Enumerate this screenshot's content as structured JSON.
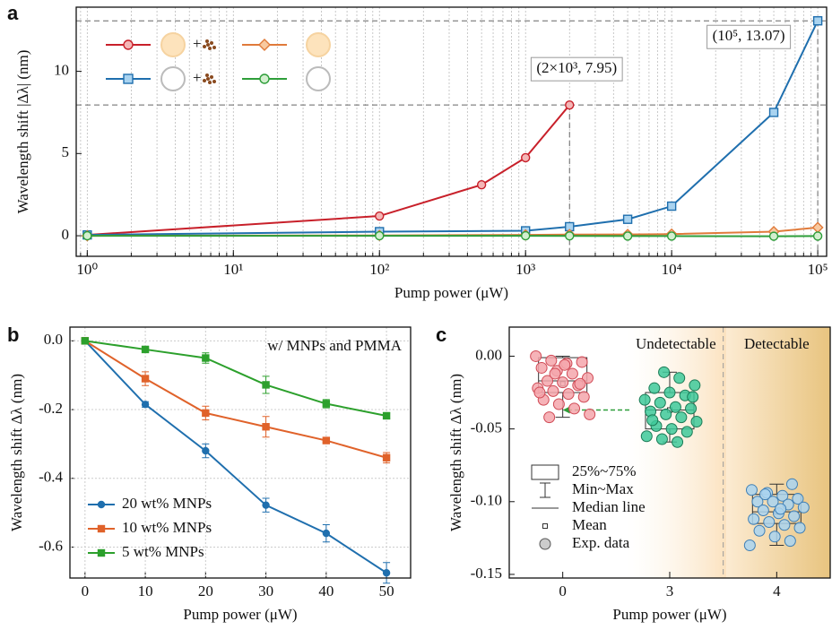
{
  "chart_data": [
    {
      "type": "line",
      "panel_label": "a",
      "xlabel": "Pump power (μW)",
      "ylabel": "Wavelength shift |Δλ| (nm)",
      "xscale": "log",
      "xlim": [
        0.84,
        115000
      ],
      "ylim": [
        -1.25,
        13.9
      ],
      "xticks": [
        {
          "value": 1,
          "label": "10⁰"
        },
        {
          "value": 10,
          "label": "10¹"
        },
        {
          "value": 100,
          "label": "10²"
        },
        {
          "value": 1000,
          "label": "10³"
        },
        {
          "value": 10000,
          "label": "10⁴"
        },
        {
          "value": 100000,
          "label": "10⁵"
        }
      ],
      "yticks": [
        0,
        5,
        10
      ],
      "grid": true,
      "series": [
        {
          "color": "#c8202a",
          "fill": "#f4b6b6",
          "marker": "circle",
          "x": [
            1,
            100,
            500,
            1000,
            2000
          ],
          "values": [
            0.05,
            1.2,
            3.1,
            4.75,
            7.95
          ]
        },
        {
          "color": "#1f6fae",
          "fill": "#a9d3f0",
          "marker": "square",
          "x": [
            1,
            100,
            1000,
            2000,
            5000,
            10000,
            50000,
            100000
          ],
          "values": [
            0.05,
            0.25,
            0.3,
            0.55,
            1.0,
            1.8,
            7.5,
            13.07
          ]
        },
        {
          "color": "#e07a3a",
          "fill": "#f8c9a0",
          "marker": "diamond",
          "x": [
            1,
            100,
            1000,
            2000,
            5000,
            10000,
            50000,
            100000
          ],
          "values": [
            0.0,
            0.02,
            0.05,
            0.07,
            0.08,
            0.1,
            0.25,
            0.5
          ]
        },
        {
          "color": "#2e9e3a",
          "fill": "#d3efcf",
          "marker": "circle",
          "x": [
            1,
            100,
            1000,
            2000,
            5000,
            10000,
            50000,
            100000
          ],
          "values": [
            0.0,
            0.0,
            0.0,
            -0.01,
            -0.02,
            -0.02,
            -0.03,
            -0.02
          ]
        }
      ],
      "annotations": [
        {
          "text": "(2×10³, 7.95)",
          "x": 2000,
          "y": 7.95,
          "color": "#c8202a"
        },
        {
          "text": "(10⁵, 13.07)",
          "x": 100000,
          "y": 13.07,
          "color": "#1f6fae"
        }
      ]
    },
    {
      "type": "line",
      "panel_label": "b",
      "xlabel": "Pump power (μW)",
      "ylabel": "Wavelength shift Δλ (nm)",
      "xlim": [
        -2.5,
        54
      ],
      "ylim": [
        -0.69,
        0.04
      ],
      "xticks": [
        0,
        10,
        20,
        30,
        40,
        50
      ],
      "yticks": [
        {
          "value": 0,
          "label": "0.0"
        },
        -0.2,
        -0.4,
        -0.6
      ],
      "grid": true,
      "legend": "lower left",
      "annotation": "w/ MNPs and PMMA",
      "series": [
        {
          "name": "20 wt% MNPs",
          "color": "#1f6fae",
          "marker": "circle",
          "x": [
            0,
            10,
            20,
            30,
            40,
            50
          ],
          "values": [
            0,
            -0.185,
            -0.32,
            -0.478,
            -0.56,
            -0.675
          ],
          "errors": [
            0,
            0.008,
            0.02,
            0.02,
            0.025,
            0.03
          ]
        },
        {
          "name": "10 wt% MNPs",
          "color": "#e0622a",
          "marker": "square",
          "x": [
            0,
            10,
            20,
            30,
            40,
            50
          ],
          "values": [
            0,
            -0.11,
            -0.21,
            -0.25,
            -0.29,
            -0.34
          ],
          "errors": [
            0,
            0.02,
            0.02,
            0.03,
            0.005,
            0.015
          ]
        },
        {
          "name": "5  wt% MNPs",
          "color": "#2ca02c",
          "marker": "square",
          "x": [
            0,
            10,
            20,
            30,
            40,
            50
          ],
          "values": [
            0,
            -0.025,
            -0.05,
            -0.128,
            -0.183,
            -0.218
          ],
          "errors": [
            0,
            0.005,
            0.015,
            0.025,
            0.012,
            0.008
          ]
        }
      ]
    },
    {
      "type": "box",
      "panel_label": "c",
      "xlabel": "Pump power (μW)",
      "ylabel": "Wavelength shift Δλ (nm)",
      "categories": [
        "0",
        "3",
        "4"
      ],
      "ylim": [
        -0.1525,
        0.02
      ],
      "yticks": [
        {
          "value": 0,
          "label": "0.00"
        },
        {
          "value": -0.05,
          "label": "-0.05"
        },
        {
          "value": -0.1,
          "label": "-0.10"
        },
        {
          "value": -0.15,
          "label": "-0.15"
        }
      ],
      "regions": [
        "Undetectable",
        "Detectable"
      ],
      "legend_labels": [
        "25%~75%",
        "Min~Max",
        "Median line",
        "Mean",
        "Exp. data"
      ],
      "colors": [
        {
          "fill": "#f4a6ac",
          "stroke": "#d04a55"
        },
        {
          "fill": "#3ec99a",
          "stroke": "#1a7a55"
        },
        {
          "fill": "#a9d3f0",
          "stroke": "#3f7fb5"
        }
      ],
      "boxes": [
        {
          "min": -0.042,
          "q1": -0.025,
          "median": -0.017,
          "mean": -0.019,
          "q3": -0.001,
          "max": 0.0
        },
        {
          "min": -0.059,
          "q1": -0.05,
          "median": -0.037,
          "mean": -0.037,
          "q3": -0.025,
          "max": -0.011
        },
        {
          "min": -0.13,
          "q1": -0.115,
          "median": -0.107,
          "mean": -0.107,
          "q3": -0.095,
          "max": -0.088
        }
      ],
      "points": [
        [
          0.0,
          -0.003,
          -0.005,
          -0.004,
          -0.008,
          -0.01,
          -0.012,
          -0.015,
          -0.017,
          -0.018,
          -0.02,
          -0.022,
          -0.024,
          -0.026,
          -0.028,
          -0.03,
          -0.033,
          -0.036,
          -0.04,
          -0.042,
          -0.006,
          -0.019,
          -0.025,
          -0.012
        ],
        [
          -0.011,
          -0.015,
          -0.02,
          -0.022,
          -0.025,
          -0.027,
          -0.03,
          -0.032,
          -0.035,
          -0.036,
          -0.038,
          -0.04,
          -0.042,
          -0.045,
          -0.048,
          -0.05,
          -0.052,
          -0.055,
          -0.057,
          -0.059,
          -0.028,
          -0.044
        ],
        [
          -0.088,
          -0.092,
          -0.094,
          -0.096,
          -0.098,
          -0.1,
          -0.1,
          -0.102,
          -0.104,
          -0.106,
          -0.108,
          -0.11,
          -0.112,
          -0.114,
          -0.116,
          -0.118,
          -0.12,
          -0.124,
          -0.127,
          -0.13,
          -0.095,
          -0.105
        ]
      ]
    }
  ]
}
